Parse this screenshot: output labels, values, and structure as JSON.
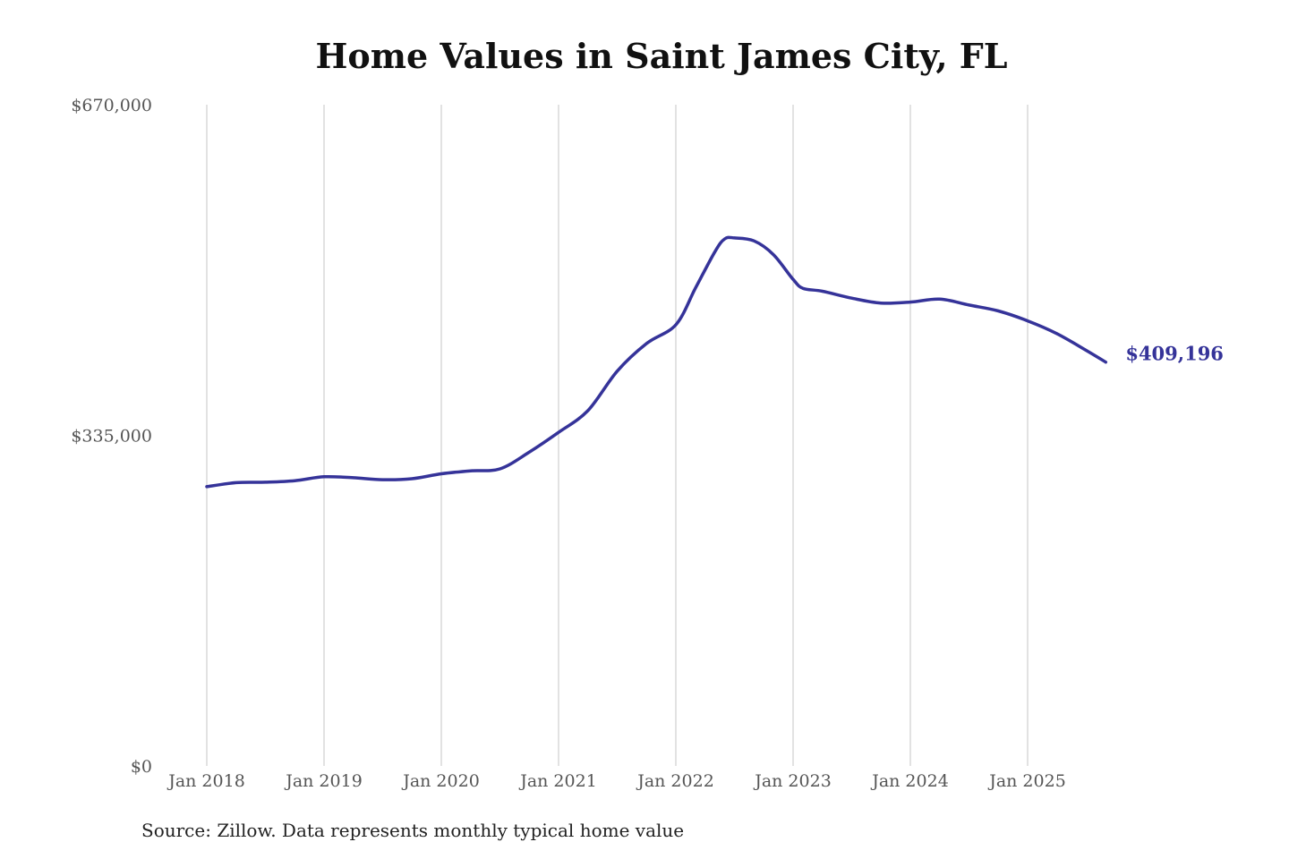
{
  "chart_data": {
    "type": "line",
    "title": "Home Values in Saint James City, FL",
    "source": "Source: Zillow. Data represents monthly typical home value",
    "ylim": [
      0,
      670000
    ],
    "yticks": [
      {
        "value": 670000,
        "label": "$670,000"
      },
      {
        "value": 335000,
        "label": "$335,000"
      },
      {
        "value": 0,
        "label": "$0"
      }
    ],
    "xticks": [
      {
        "date": "2018-01",
        "label": "Jan 2018"
      },
      {
        "date": "2019-01",
        "label": "Jan 2019"
      },
      {
        "date": "2020-01",
        "label": "Jan 2020"
      },
      {
        "date": "2021-01",
        "label": "Jan 2021"
      },
      {
        "date": "2022-01",
        "label": "Jan 2022"
      },
      {
        "date": "2023-01",
        "label": "Jan 2023"
      },
      {
        "date": "2024-01",
        "label": "Jan 2024"
      },
      {
        "date": "2025-01",
        "label": "Jan 2025"
      }
    ],
    "grid": "vertical",
    "line_color": "#353399",
    "end_label": "$409,196",
    "series": [
      {
        "x": [
          "2018-01",
          "2018-04",
          "2018-07",
          "2018-10",
          "2019-01",
          "2019-04",
          "2019-07",
          "2019-10",
          "2020-01",
          "2020-04",
          "2020-07",
          "2020-10",
          "2021-01",
          "2021-04",
          "2021-07",
          "2021-10",
          "2022-01",
          "2022-03",
          "2022-05",
          "2022-06",
          "2022-07",
          "2022-09",
          "2022-11",
          "2023-01",
          "2023-02",
          "2023-04",
          "2023-07",
          "2023-10",
          "2024-01",
          "2024-04",
          "2024-07",
          "2024-10",
          "2025-01",
          "2025-04",
          "2025-07",
          "2025-09"
        ],
        "values": [
          283000,
          287000,
          287500,
          289000,
          293000,
          292000,
          290000,
          291000,
          296000,
          299000,
          301000,
          318000,
          338000,
          360000,
          400000,
          428000,
          447000,
          484000,
          521000,
          534000,
          535000,
          532000,
          518000,
          493000,
          484000,
          481000,
          474000,
          469000,
          470000,
          473000,
          467000,
          461000,
          451000,
          438000,
          421000,
          409196
        ]
      }
    ]
  }
}
